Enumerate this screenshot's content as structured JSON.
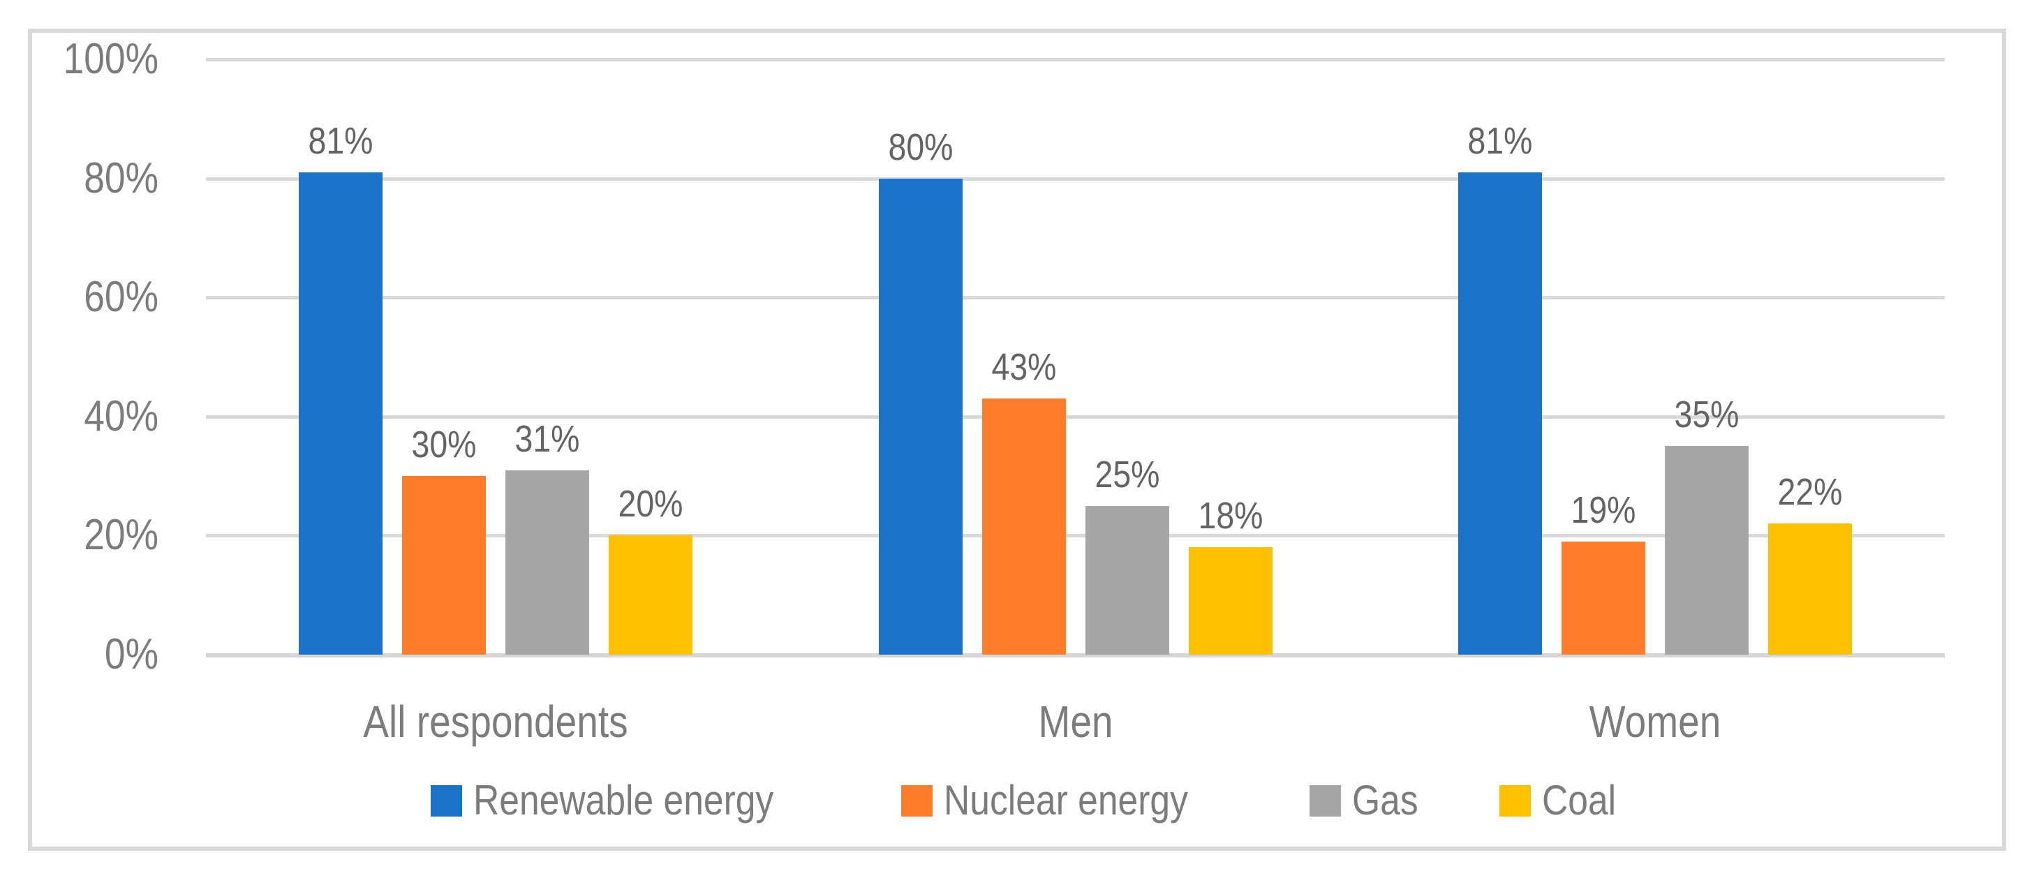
{
  "chart_data": {
    "type": "bar",
    "categories": [
      "All respondents",
      "Men",
      "Women"
    ],
    "series": [
      {
        "name": "Renewable energy",
        "color": "#1a73c8",
        "values": [
          81,
          80,
          81
        ]
      },
      {
        "name": "Nuclear energy",
        "color": "#fd7d2a",
        "values": [
          30,
          43,
          19
        ]
      },
      {
        "name": "Gas",
        "color": "#a6a6a6",
        "values": [
          31,
          25,
          35
        ]
      },
      {
        "name": "Coal",
        "color": "#ffc000",
        "values": [
          20,
          18,
          22
        ]
      }
    ],
    "data_labels": [
      [
        "81%",
        "30%",
        "31%",
        "20%"
      ],
      [
        "80%",
        "43%",
        "25%",
        "18%"
      ],
      [
        "81%",
        "19%",
        "35%",
        "22%"
      ]
    ],
    "title": "",
    "xlabel": "",
    "ylabel": "",
    "ylim": [
      0,
      100
    ],
    "yticks": [
      "100%",
      "80%",
      "60%",
      "40%",
      "20%",
      "0%"
    ],
    "ytick_values": [
      100,
      80,
      60,
      40,
      20,
      0
    ],
    "grid": true,
    "legend_position": "bottom",
    "legend_entries": [
      "Renewable energy",
      "Nuclear energy",
      "Gas",
      "Coal"
    ]
  },
  "colors": {
    "frame_border": "#d9d9d9",
    "gridline": "#d9d9d9",
    "axis_text": "#7c7c7c",
    "data_label_text": "#646464",
    "background": "#ffffff"
  }
}
